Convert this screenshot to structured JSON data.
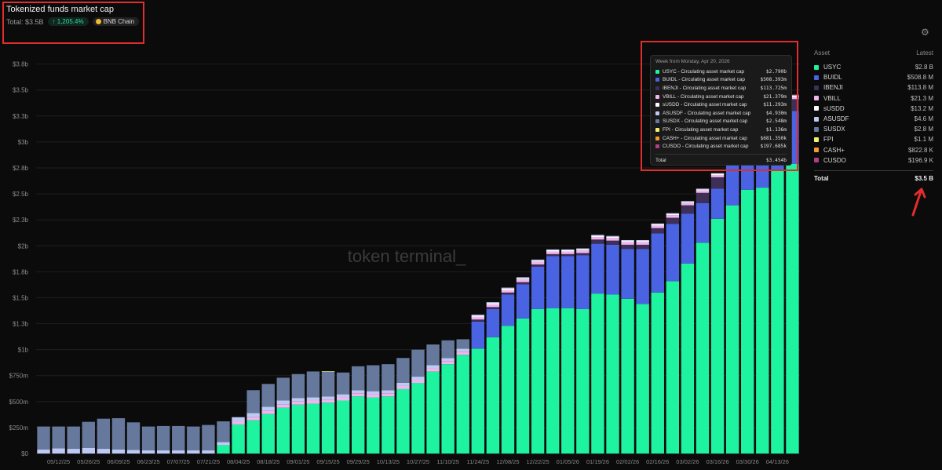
{
  "header": {
    "title": "Tokenized funds market cap",
    "total": "Total: $3.5B",
    "change": "↑ 1,205.4%",
    "chain": "BNB Chain"
  },
  "watermark": "token terminal_",
  "legend": {
    "asset_header": "Asset",
    "latest_header": "Latest",
    "items": [
      {
        "name": "USYC",
        "value": "$2.8 B",
        "color": "#1ef3a0"
      },
      {
        "name": "BUIDL",
        "value": "$508.8 M",
        "color": "#4a63e3"
      },
      {
        "name": "IBENJI",
        "value": "$113.8 M",
        "color": "#3d2f57"
      },
      {
        "name": "VBILL",
        "value": "$21.3 M",
        "color": "#f2b3ee"
      },
      {
        "name": "sUSDD",
        "value": "$13.2 M",
        "color": "#ffffff"
      },
      {
        "name": "ASUSDF",
        "value": "$4.6 M",
        "color": "#bfcaf4"
      },
      {
        "name": "SUSDX",
        "value": "$2.8 M",
        "color": "#66799c"
      },
      {
        "name": "FPI",
        "value": "$1.1 M",
        "color": "#f8f06a"
      },
      {
        "name": "CASH+",
        "value": "$822.8 K",
        "color": "#f59b2e"
      },
      {
        "name": "CUSDO",
        "value": "$196.9 K",
        "color": "#b13f86"
      }
    ],
    "total_label": "Total",
    "total_value": "$3.5 B"
  },
  "tooltip": {
    "week": "Week from Monday, Apr 20, 2026",
    "rows": [
      {
        "label": "USYC - Circulating asset market cap",
        "value": "$2.790b",
        "color": "#1ef3a0"
      },
      {
        "label": "BUIDL - Circulating asset market cap",
        "value": "$508.393m",
        "color": "#4a63e3"
      },
      {
        "label": "IBENJI - Circulating asset market cap",
        "value": "$113.725m",
        "color": "#3d2f57"
      },
      {
        "label": "VBILL - Circulating asset market cap",
        "value": "$21.379m",
        "color": "#f2b3ee"
      },
      {
        "label": "sUSDD - Circulating asset market cap",
        "value": "$11.293m",
        "color": "#ffffff"
      },
      {
        "label": "ASUSDF - Circulating asset market cap",
        "value": "$4.930m",
        "color": "#bfcaf4"
      },
      {
        "label": "SUSDX - Circulating asset market cap",
        "value": "$2.548m",
        "color": "#66799c"
      },
      {
        "label": "FPI - Circulating asset market cap",
        "value": "$1.136m",
        "color": "#f8f06a"
      },
      {
        "label": "CASH+ - Circulating asset market cap",
        "value": "$681.350k",
        "color": "#f59b2e"
      },
      {
        "label": "CUSDO - Circulating asset market cap",
        "value": "$197.685k",
        "color": "#b13f86"
      }
    ],
    "total_label": "Total",
    "total_value": "$3.454b"
  },
  "chart_data": {
    "type": "bar",
    "stacked": true,
    "ylim": [
      0,
      3800000000
    ],
    "y_ticks": [
      0,
      250000000,
      500000000,
      750000000,
      1000000000,
      1250000000,
      1500000000,
      1750000000,
      2000000000,
      2250000000,
      2500000000,
      2750000000,
      3000000000,
      3250000000,
      3500000000,
      3750000000
    ],
    "y_tick_labels": [
      "$0",
      "$250m",
      "$500m",
      "$750m",
      "$1b",
      "$1.3b",
      "$1.5b",
      "$1.8b",
      "$2b",
      "$2.3b",
      "$2.5b",
      "$2.8b",
      "$3b",
      "$3.3b",
      "$3.5b",
      "$3.8b"
    ],
    "x_tick_labels": [
      "05/12/25",
      "05/26/25",
      "06/09/25",
      "06/23/25",
      "07/07/25",
      "07/21/25",
      "08/04/25",
      "08/18/25",
      "09/01/25",
      "09/15/25",
      "09/29/25",
      "10/13/25",
      "10/27/25",
      "11/10/25",
      "11/24/25",
      "12/08/25",
      "12/22/25",
      "01/05/26",
      "01/19/26",
      "02/02/26",
      "02/16/26",
      "03/02/26",
      "03/16/26",
      "03/30/26",
      "04/13/26"
    ],
    "grid": true,
    "categories": [
      "05/05/25",
      "05/12/25",
      "05/19/25",
      "05/26/25",
      "06/02/25",
      "06/09/25",
      "06/16/25",
      "06/23/25",
      "06/30/25",
      "07/07/25",
      "07/14/25",
      "07/21/25",
      "07/28/25",
      "08/04/25",
      "08/11/25",
      "08/18/25",
      "08/25/25",
      "09/01/25",
      "09/08/25",
      "09/15/25",
      "09/22/25",
      "09/29/25",
      "10/06/25",
      "10/13/25",
      "10/20/25",
      "10/27/25",
      "11/03/25",
      "11/10/25",
      "11/17/25",
      "11/24/25",
      "12/01/25",
      "12/08/25",
      "12/15/25",
      "12/22/25",
      "12/29/25",
      "01/05/26",
      "01/12/26",
      "01/19/26",
      "01/26/26",
      "02/02/26",
      "02/09/26",
      "02/16/26",
      "02/23/26",
      "03/02/26",
      "03/09/26",
      "03/16/26",
      "03/23/26",
      "03/30/26",
      "04/06/26",
      "04/13/26",
      "04/20/26"
    ],
    "series": [
      {
        "name": "USYC",
        "color": "#1ef3a0",
        "values": [
          0,
          0,
          0,
          0,
          0,
          0,
          0,
          0,
          0,
          0,
          0,
          0,
          80000000,
          280000000,
          320000000,
          380000000,
          440000000,
          470000000,
          480000000,
          490000000,
          510000000,
          550000000,
          540000000,
          550000000,
          620000000,
          680000000,
          790000000,
          860000000,
          950000000,
          1010000000,
          1120000000,
          1230000000,
          1300000000,
          1390000000,
          1400000000,
          1400000000,
          1390000000,
          1540000000,
          1530000000,
          1490000000,
          1440000000,
          1550000000,
          1660000000,
          1830000000,
          2030000000,
          2260000000,
          2390000000,
          2540000000,
          2560000000,
          2730000000,
          2790000000
        ]
      },
      {
        "name": "BUIDL",
        "color": "#4a63e3",
        "values": [
          0,
          0,
          0,
          0,
          0,
          0,
          0,
          0,
          0,
          0,
          0,
          0,
          0,
          0,
          0,
          0,
          0,
          0,
          0,
          0,
          0,
          0,
          0,
          0,
          0,
          0,
          0,
          0,
          0,
          260000000,
          270000000,
          300000000,
          330000000,
          410000000,
          500000000,
          500000000,
          520000000,
          480000000,
          480000000,
          480000000,
          530000000,
          570000000,
          550000000,
          480000000,
          380000000,
          290000000,
          440000000,
          440000000,
          530000000,
          500000000,
          508393000
        ]
      },
      {
        "name": "IBENJI",
        "color": "#3d2f57",
        "values": [
          0,
          0,
          0,
          0,
          0,
          0,
          0,
          0,
          0,
          0,
          0,
          0,
          0,
          0,
          0,
          0,
          0,
          0,
          0,
          0,
          0,
          0,
          0,
          0,
          0,
          0,
          0,
          0,
          0,
          20000000,
          20000000,
          20000000,
          20000000,
          20000000,
          20000000,
          20000000,
          20000000,
          40000000,
          40000000,
          40000000,
          40000000,
          50000000,
          60000000,
          80000000,
          100000000,
          110000000,
          110000000,
          110000000,
          110000000,
          113000000,
          113725000
        ]
      },
      {
        "name": "VBILL",
        "color": "#f2b3ee",
        "values": [
          0,
          0,
          0,
          0,
          0,
          0,
          0,
          0,
          0,
          0,
          0,
          0,
          0,
          30000000,
          30000000,
          30000000,
          30000000,
          30000000,
          30000000,
          30000000,
          30000000,
          30000000,
          30000000,
          30000000,
          30000000,
          30000000,
          30000000,
          30000000,
          30000000,
          25000000,
          25000000,
          25000000,
          25000000,
          25000000,
          25000000,
          25000000,
          25000000,
          25000000,
          25000000,
          25000000,
          25000000,
          25000000,
          25000000,
          22000000,
          22000000,
          22000000,
          22000000,
          22000000,
          22000000,
          21500000,
          21379000
        ]
      },
      {
        "name": "sUSDD",
        "color": "#ffffff",
        "values": [
          0,
          0,
          0,
          0,
          0,
          0,
          0,
          0,
          0,
          0,
          0,
          0,
          0,
          0,
          0,
          0,
          0,
          0,
          0,
          0,
          0,
          0,
          0,
          0,
          0,
          0,
          0,
          0,
          0,
          12000000,
          12000000,
          12000000,
          12000000,
          12000000,
          12000000,
          12000000,
          12000000,
          12000000,
          12000000,
          12000000,
          12000000,
          12000000,
          12000000,
          12000000,
          12000000,
          12000000,
          12000000,
          12000000,
          12000000,
          11500000,
          11293000
        ]
      },
      {
        "name": "ASUSDF",
        "color": "#bfcaf4",
        "values": [
          40000000,
          50000000,
          45000000,
          55000000,
          45000000,
          40000000,
          35000000,
          30000000,
          30000000,
          30000000,
          30000000,
          30000000,
          30000000,
          40000000,
          40000000,
          40000000,
          40000000,
          35000000,
          30000000,
          30000000,
          30000000,
          30000000,
          30000000,
          30000000,
          30000000,
          30000000,
          30000000,
          30000000,
          30000000,
          10000000,
          10000000,
          10000000,
          10000000,
          10000000,
          8000000,
          8000000,
          8000000,
          8000000,
          8000000,
          8000000,
          8000000,
          8000000,
          7000000,
          6000000,
          6000000,
          5000000,
          5000000,
          5000000,
          5000000,
          5000000,
          4930000
        ]
      },
      {
        "name": "SUSDX",
        "color": "#66799c",
        "values": [
          220000000,
          210000000,
          215000000,
          250000000,
          290000000,
          300000000,
          265000000,
          230000000,
          235000000,
          235000000,
          230000000,
          245000000,
          200000000,
          0,
          220000000,
          220000000,
          220000000,
          230000000,
          250000000,
          240000000,
          210000000,
          230000000,
          250000000,
          250000000,
          240000000,
          260000000,
          200000000,
          170000000,
          90000000,
          0,
          0,
          0,
          0,
          0,
          0,
          0,
          0,
          0,
          0,
          0,
          0,
          0,
          0,
          0,
          0,
          0,
          0,
          0,
          0,
          2600000,
          2548000
        ]
      },
      {
        "name": "FPI",
        "color": "#f8f06a",
        "values": [
          0,
          0,
          0,
          0,
          0,
          0,
          0,
          0,
          0,
          0,
          0,
          0,
          0,
          0,
          0,
          0,
          0,
          0,
          0,
          3000000,
          0,
          0,
          0,
          0,
          0,
          0,
          0,
          0,
          0,
          0,
          0,
          0,
          0,
          0,
          0,
          0,
          0,
          0,
          0,
          0,
          0,
          0,
          0,
          0,
          0,
          0,
          0,
          0,
          0,
          1100000,
          1136000
        ]
      },
      {
        "name": "CASH+",
        "color": "#f59b2e",
        "values": [
          0,
          0,
          0,
          0,
          0,
          0,
          0,
          0,
          0,
          0,
          0,
          0,
          0,
          0,
          0,
          0,
          0,
          0,
          0,
          0,
          0,
          0,
          0,
          0,
          0,
          0,
          0,
          0,
          0,
          0,
          0,
          0,
          0,
          0,
          0,
          0,
          0,
          0,
          0,
          0,
          0,
          0,
          0,
          0,
          0,
          0,
          0,
          0,
          0,
          700000,
          681350
        ]
      },
      {
        "name": "CUSDO",
        "color": "#b13f86",
        "values": [
          0,
          0,
          0,
          0,
          0,
          0,
          0,
          0,
          0,
          0,
          0,
          0,
          0,
          0,
          0,
          0,
          0,
          0,
          0,
          0,
          0,
          0,
          0,
          0,
          0,
          0,
          0,
          0,
          0,
          0,
          0,
          0,
          0,
          0,
          0,
          0,
          0,
          0,
          0,
          0,
          0,
          0,
          0,
          0,
          0,
          0,
          0,
          0,
          0,
          200000,
          197685
        ]
      }
    ]
  }
}
